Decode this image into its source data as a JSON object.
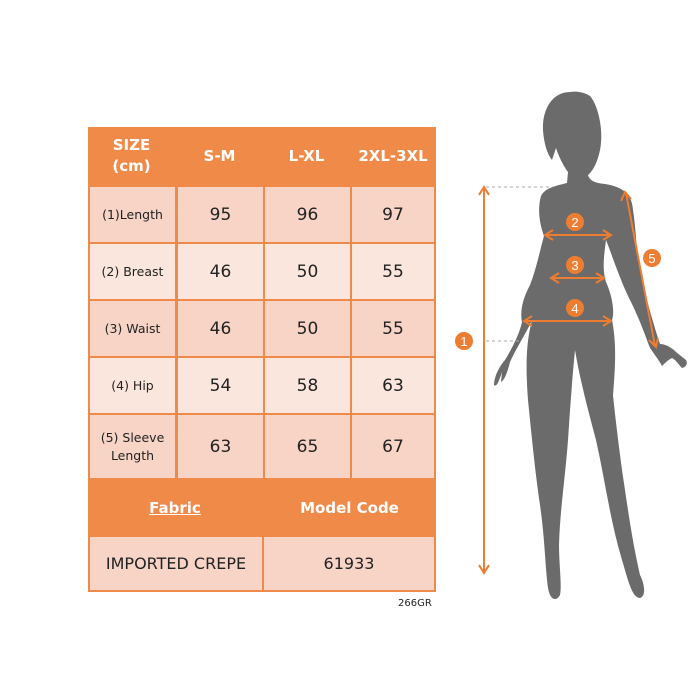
{
  "table": {
    "header": [
      "SIZE\n(cm)",
      "S-M",
      "L-XL",
      "2XL-3XL"
    ],
    "header_size_line1": "SIZE",
    "header_size_line2": "(cm)",
    "rows": [
      {
        "label": "(1)Length",
        "values": [
          "95",
          "96",
          "97"
        ]
      },
      {
        "label": "(2) Breast",
        "values": [
          "46",
          "50",
          "55"
        ]
      },
      {
        "label": "(3) Waist",
        "values": [
          "46",
          "50",
          "55"
        ]
      },
      {
        "label": "(4) Hip",
        "values": [
          "54",
          "58",
          "63"
        ]
      },
      {
        "label": "(5) Sleeve Length",
        "label_line1": "(5) Sleeve",
        "label_line2": "Length",
        "values": [
          "63",
          "65",
          "67"
        ]
      }
    ],
    "fabric_header": "Fabric",
    "model_code_header": "Model Code",
    "fabric_value": "IMPORTED CREPE",
    "model_code_value": "61933"
  },
  "product_code": "266GR",
  "figure": {
    "markers": [
      "1",
      "2",
      "3",
      "4",
      "5"
    ]
  },
  "colors": {
    "accent": "#ED7D31",
    "row_dark": "#F7D4C6",
    "row_light": "#FBE6DD",
    "silhouette": "#6b6b6b"
  }
}
